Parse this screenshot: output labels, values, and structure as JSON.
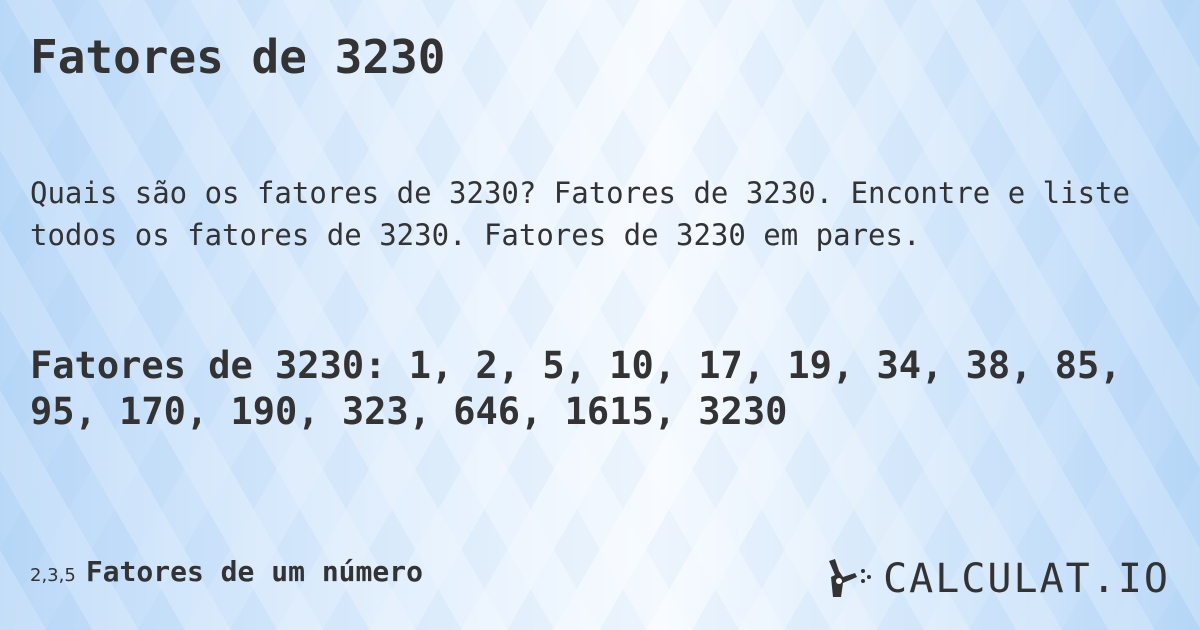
{
  "title": "Fatores de 3230",
  "description": "Quais são os fatores de 3230? Fatores de 3230. Encontre e liste todos os fatores de 3230. Fatores de 3230 em pares.",
  "factors_text": "Fatores de 3230: 1, 2, 5, 10, 17, 19, 34, 38, 85, 95, 170, 190, 323, 646, 1615, 3230",
  "footer": {
    "icon_text": "2,3,5",
    "label": "Fatores de um número"
  },
  "logo": {
    "text": "CALCULAT.IO",
    "icon": "magic-hand-icon"
  }
}
